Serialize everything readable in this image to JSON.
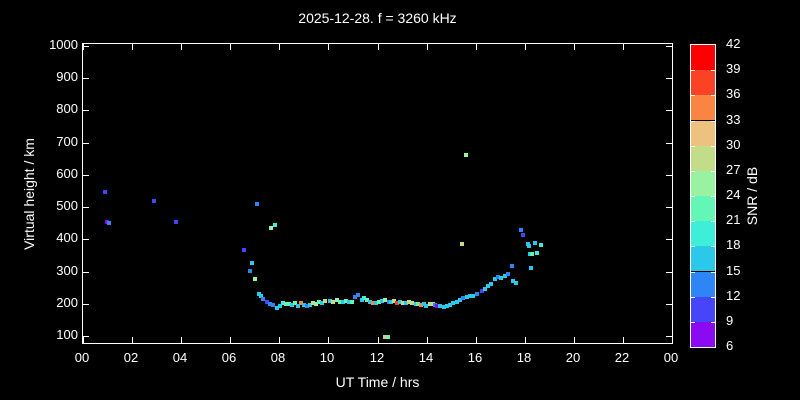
{
  "chart_data": {
    "type": "scatter",
    "title": "2025-12-28. f = 3260 kHz",
    "xlabel": "UT Time / hrs",
    "ylabel": "Virtual height / km",
    "xlim": [
      0,
      24
    ],
    "ylim": [
      100,
      1000
    ],
    "x_tick_values": [
      0,
      2,
      4,
      6,
      8,
      10,
      12,
      14,
      16,
      18,
      20,
      22,
      24
    ],
    "x_tick_labels": [
      "00",
      "02",
      "04",
      "06",
      "08",
      "10",
      "12",
      "14",
      "16",
      "18",
      "20",
      "22",
      "00"
    ],
    "y_tick_values": [
      100,
      200,
      300,
      400,
      500,
      600,
      700,
      800,
      900,
      1000
    ],
    "grid": false,
    "background_color": "#000000",
    "foreground_color": "#ffffff",
    "colorbar": {
      "label": "SNR / dB",
      "min": 6,
      "max": 42,
      "step": 3,
      "tick_labels": [
        6,
        9,
        12,
        15,
        18,
        21,
        24,
        27,
        30,
        33,
        36,
        39,
        42
      ],
      "band_colors_low_to_high": [
        "#8A0AF2",
        "#4646F8",
        "#2E86F6",
        "#2CC8EA",
        "#3DEED8",
        "#64F6B4",
        "#98F2A2",
        "#C2DC8A",
        "#EDC17E",
        "#FA8442",
        "#FB4224",
        "#FA0000"
      ]
    },
    "points_format": [
      "ut_hours",
      "virtual_height_km",
      "snr_db"
    ],
    "points": [
      [
        0.9,
        547,
        10
      ],
      [
        0.97,
        455,
        7
      ],
      [
        1.06,
        452,
        13
      ],
      [
        2.9,
        519,
        10
      ],
      [
        3.8,
        454,
        10
      ],
      [
        6.58,
        368,
        10
      ],
      [
        6.82,
        302,
        13
      ],
      [
        6.87,
        328,
        16
      ],
      [
        6.99,
        278,
        25
      ],
      [
        7.08,
        510,
        13
      ],
      [
        7.17,
        231,
        16
      ],
      [
        7.26,
        224,
        16
      ],
      [
        7.35,
        214,
        13
      ],
      [
        7.48,
        206,
        10
      ],
      [
        7.6,
        198,
        13
      ],
      [
        7.67,
        434,
        25
      ],
      [
        7.75,
        196,
        13
      ],
      [
        7.84,
        444,
        19
      ],
      [
        7.9,
        188,
        16
      ],
      [
        8.02,
        194,
        16
      ],
      [
        8.16,
        202,
        19
      ],
      [
        8.28,
        198,
        22
      ],
      [
        8.4,
        200,
        22
      ],
      [
        8.52,
        197,
        16
      ],
      [
        8.64,
        202,
        22
      ],
      [
        8.76,
        194,
        16
      ],
      [
        8.88,
        202,
        34
      ],
      [
        9.0,
        196,
        16
      ],
      [
        9.12,
        192,
        13
      ],
      [
        9.25,
        197,
        16
      ],
      [
        9.36,
        203,
        28
      ],
      [
        9.5,
        201,
        25
      ],
      [
        9.62,
        207,
        22
      ],
      [
        9.73,
        202,
        16
      ],
      [
        9.85,
        208,
        28
      ],
      [
        10.05,
        208,
        16
      ],
      [
        10.2,
        206,
        28
      ],
      [
        10.35,
        211,
        25
      ],
      [
        10.48,
        207,
        22
      ],
      [
        10.6,
        205,
        16
      ],
      [
        10.72,
        209,
        22
      ],
      [
        10.85,
        205,
        16
      ],
      [
        10.97,
        207,
        22
      ],
      [
        11.1,
        221,
        13
      ],
      [
        11.22,
        228,
        13
      ],
      [
        11.35,
        213,
        16
      ],
      [
        11.47,
        218,
        19
      ],
      [
        11.58,
        212,
        22
      ],
      [
        11.7,
        205,
        16
      ],
      [
        11.8,
        203,
        34
      ],
      [
        11.92,
        203,
        16
      ],
      [
        12.05,
        206,
        22
      ],
      [
        12.18,
        210,
        16
      ],
      [
        12.29,
        97,
        31
      ],
      [
        12.3,
        212,
        25
      ],
      [
        12.41,
        97,
        22
      ],
      [
        12.45,
        205,
        13
      ],
      [
        12.55,
        207,
        16
      ],
      [
        12.68,
        209,
        28
      ],
      [
        12.79,
        204,
        37
      ],
      [
        12.92,
        206,
        16
      ],
      [
        13.05,
        204,
        28
      ],
      [
        13.18,
        202,
        16
      ],
      [
        13.3,
        206,
        28
      ],
      [
        13.42,
        203,
        28
      ],
      [
        13.55,
        201,
        16
      ],
      [
        13.65,
        199,
        22
      ],
      [
        13.78,
        196,
        34
      ],
      [
        13.9,
        198,
        16
      ],
      [
        13.98,
        194,
        16
      ],
      [
        14.12,
        198,
        28
      ],
      [
        14.25,
        200,
        28
      ],
      [
        14.35,
        195,
        13
      ],
      [
        14.42,
        192,
        7
      ],
      [
        14.55,
        193,
        16
      ],
      [
        14.69,
        190,
        16
      ],
      [
        14.82,
        192,
        16
      ],
      [
        14.96,
        196,
        16
      ],
      [
        15.09,
        202,
        16
      ],
      [
        15.23,
        207,
        16
      ],
      [
        15.37,
        213,
        16
      ],
      [
        15.44,
        385,
        28
      ],
      [
        15.5,
        217,
        13
      ],
      [
        15.6,
        660,
        25
      ],
      [
        15.64,
        222,
        16
      ],
      [
        15.78,
        223,
        16
      ],
      [
        15.91,
        225,
        16
      ],
      [
        16.04,
        231,
        13
      ],
      [
        16.24,
        240,
        10
      ],
      [
        16.37,
        246,
        16
      ],
      [
        16.5,
        255,
        16
      ],
      [
        16.62,
        262,
        16
      ],
      [
        16.8,
        276,
        16
      ],
      [
        16.93,
        283,
        13
      ],
      [
        17.05,
        280,
        16
      ],
      [
        17.18,
        286,
        16
      ],
      [
        17.3,
        293,
        13
      ],
      [
        17.47,
        317,
        13
      ],
      [
        17.52,
        271,
        16
      ],
      [
        17.65,
        266,
        16
      ],
      [
        17.83,
        428,
        13
      ],
      [
        17.91,
        413,
        10
      ],
      [
        18.14,
        386,
        16
      ],
      [
        18.18,
        379,
        16
      ],
      [
        18.21,
        355,
        16
      ],
      [
        18.24,
        312,
        16
      ],
      [
        18.3,
        353,
        22
      ],
      [
        18.41,
        389,
        16
      ],
      [
        18.51,
        358,
        19
      ],
      [
        18.65,
        382,
        19
      ]
    ]
  }
}
